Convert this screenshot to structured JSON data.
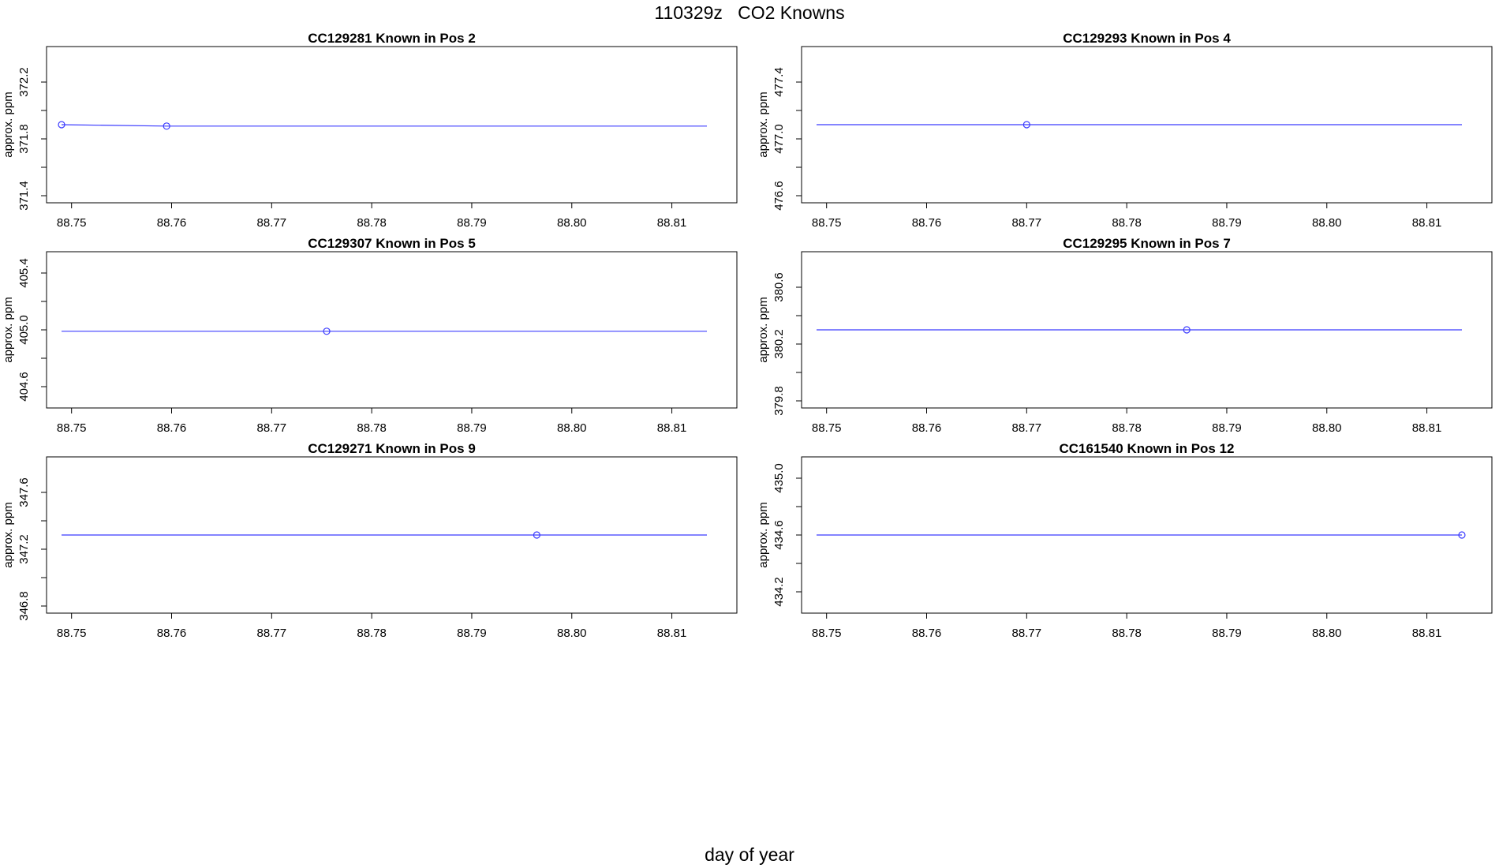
{
  "title": "110329z   CO2 Knowns",
  "xlabel": "day of year",
  "colors": {
    "series": "#3b3bff",
    "frame": "#000000"
  },
  "chart_data": [
    {
      "type": "line",
      "title": "CC129281    Known in Pos 2",
      "ylabel": "approx. ppm",
      "xlim": [
        88.7475,
        88.8165
      ],
      "ylim": [
        371.35,
        372.45
      ],
      "xticks": [
        "88.75",
        "88.76",
        "88.77",
        "88.78",
        "88.79",
        "88.80",
        "88.81"
      ],
      "yticks": [
        "371.4",
        "371.8",
        "372.2"
      ],
      "line": {
        "x": [
          88.749,
          88.7595,
          88.8135
        ],
        "y": [
          371.9,
          371.89,
          371.89
        ]
      },
      "points": {
        "x": [
          88.749,
          88.7595
        ],
        "y": [
          371.9,
          371.89
        ]
      }
    },
    {
      "type": "line",
      "title": "CC129293    Known in Pos 4",
      "ylabel": "approx. ppm",
      "xlim": [
        88.7475,
        88.8165
      ],
      "ylim": [
        476.55,
        477.65
      ],
      "xticks": [
        "88.75",
        "88.76",
        "88.77",
        "88.78",
        "88.79",
        "88.80",
        "88.81"
      ],
      "yticks": [
        "476.6",
        "477.0",
        "477.4"
      ],
      "line": {
        "x": [
          88.749,
          88.8135
        ],
        "y": [
          477.1,
          477.1
        ]
      },
      "points": {
        "x": [
          88.77
        ],
        "y": [
          477.1
        ]
      }
    },
    {
      "type": "line",
      "title": "CC129307    Known in Pos 5",
      "ylabel": "approx. ppm",
      "xlim": [
        88.7475,
        88.8165
      ],
      "ylim": [
        404.45,
        405.55
      ],
      "xticks": [
        "88.75",
        "88.76",
        "88.77",
        "88.78",
        "88.79",
        "88.80",
        "88.81"
      ],
      "yticks": [
        "404.6",
        "405.0",
        "405.4"
      ],
      "line": {
        "x": [
          88.749,
          88.8135
        ],
        "y": [
          404.99,
          404.99
        ]
      },
      "points": {
        "x": [
          88.7755
        ],
        "y": [
          404.99
        ]
      }
    },
    {
      "type": "line",
      "title": "CC129295    Known in Pos 7",
      "ylabel": "approx. ppm",
      "xlim": [
        88.7475,
        88.8165
      ],
      "ylim": [
        379.75,
        380.85
      ],
      "xticks": [
        "88.75",
        "88.76",
        "88.77",
        "88.78",
        "88.79",
        "88.80",
        "88.81"
      ],
      "yticks": [
        "379.8",
        "380.2",
        "380.6"
      ],
      "line": {
        "x": [
          88.749,
          88.8135
        ],
        "y": [
          380.3,
          380.3
        ]
      },
      "points": {
        "x": [
          88.786
        ],
        "y": [
          380.3
        ]
      }
    },
    {
      "type": "line",
      "title": "CC129271    Known in Pos 9",
      "ylabel": "approx. ppm",
      "xlim": [
        88.7475,
        88.8165
      ],
      "ylim": [
        346.75,
        347.85
      ],
      "xticks": [
        "88.75",
        "88.76",
        "88.77",
        "88.78",
        "88.79",
        "88.80",
        "88.81"
      ],
      "yticks": [
        "346.8",
        "347.2",
        "347.6"
      ],
      "line": {
        "x": [
          88.749,
          88.8135
        ],
        "y": [
          347.3,
          347.3
        ]
      },
      "points": {
        "x": [
          88.7965
        ],
        "y": [
          347.3
        ]
      }
    },
    {
      "type": "line",
      "title": "CC161540    Known in Pos 12",
      "ylabel": "approx. ppm",
      "xlim": [
        88.7475,
        88.8165
      ],
      "ylim": [
        434.05,
        435.15
      ],
      "xticks": [
        "88.75",
        "88.76",
        "88.77",
        "88.78",
        "88.79",
        "88.80",
        "88.81"
      ],
      "yticks": [
        "434.2",
        "434.6",
        "435.0"
      ],
      "line": {
        "x": [
          88.749,
          88.8135
        ],
        "y": [
          434.6,
          434.6
        ]
      },
      "points": {
        "x": [
          88.8135
        ],
        "y": [
          434.6
        ]
      }
    }
  ]
}
